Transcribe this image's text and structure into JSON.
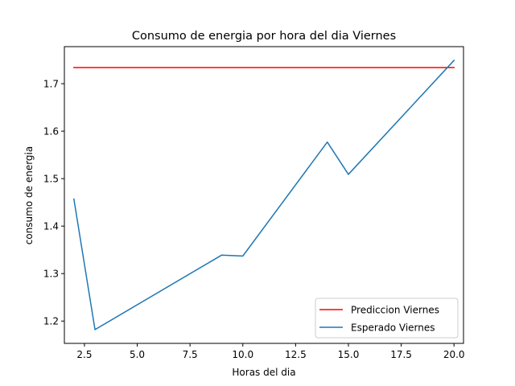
{
  "chart_data": {
    "type": "line",
    "title": "Consumo de energia por hora del dia Viernes",
    "xlabel": "Horas del dia",
    "ylabel": "consumo de energia",
    "xlim": [
      1.55,
      20.45
    ],
    "ylim": [
      1.153,
      1.778
    ],
    "xticks": [
      2.5,
      5.0,
      7.5,
      10.0,
      12.5,
      15.0,
      17.5,
      20.0
    ],
    "xtick_labels": [
      "2.5",
      "5.0",
      "7.5",
      "10.0",
      "12.5",
      "15.0",
      "17.5",
      "20.0"
    ],
    "yticks": [
      1.2,
      1.3,
      1.4,
      1.5,
      1.6,
      1.7
    ],
    "ytick_labels": [
      "1.2",
      "1.3",
      "1.4",
      "1.5",
      "1.6",
      "1.7"
    ],
    "grid": false,
    "legend_position": "lower-right",
    "series": [
      {
        "name": "Prediccion Viernes",
        "color": "#ff0000",
        "x": [
          2,
          20
        ],
        "y": [
          1.734,
          1.734
        ]
      },
      {
        "name": "Esperado Viernes",
        "color": "#1f77b4",
        "x": [
          2,
          3,
          9,
          10,
          14,
          15,
          20
        ],
        "y": [
          1.457,
          1.182,
          1.339,
          1.337,
          1.577,
          1.509,
          1.749
        ]
      }
    ]
  }
}
